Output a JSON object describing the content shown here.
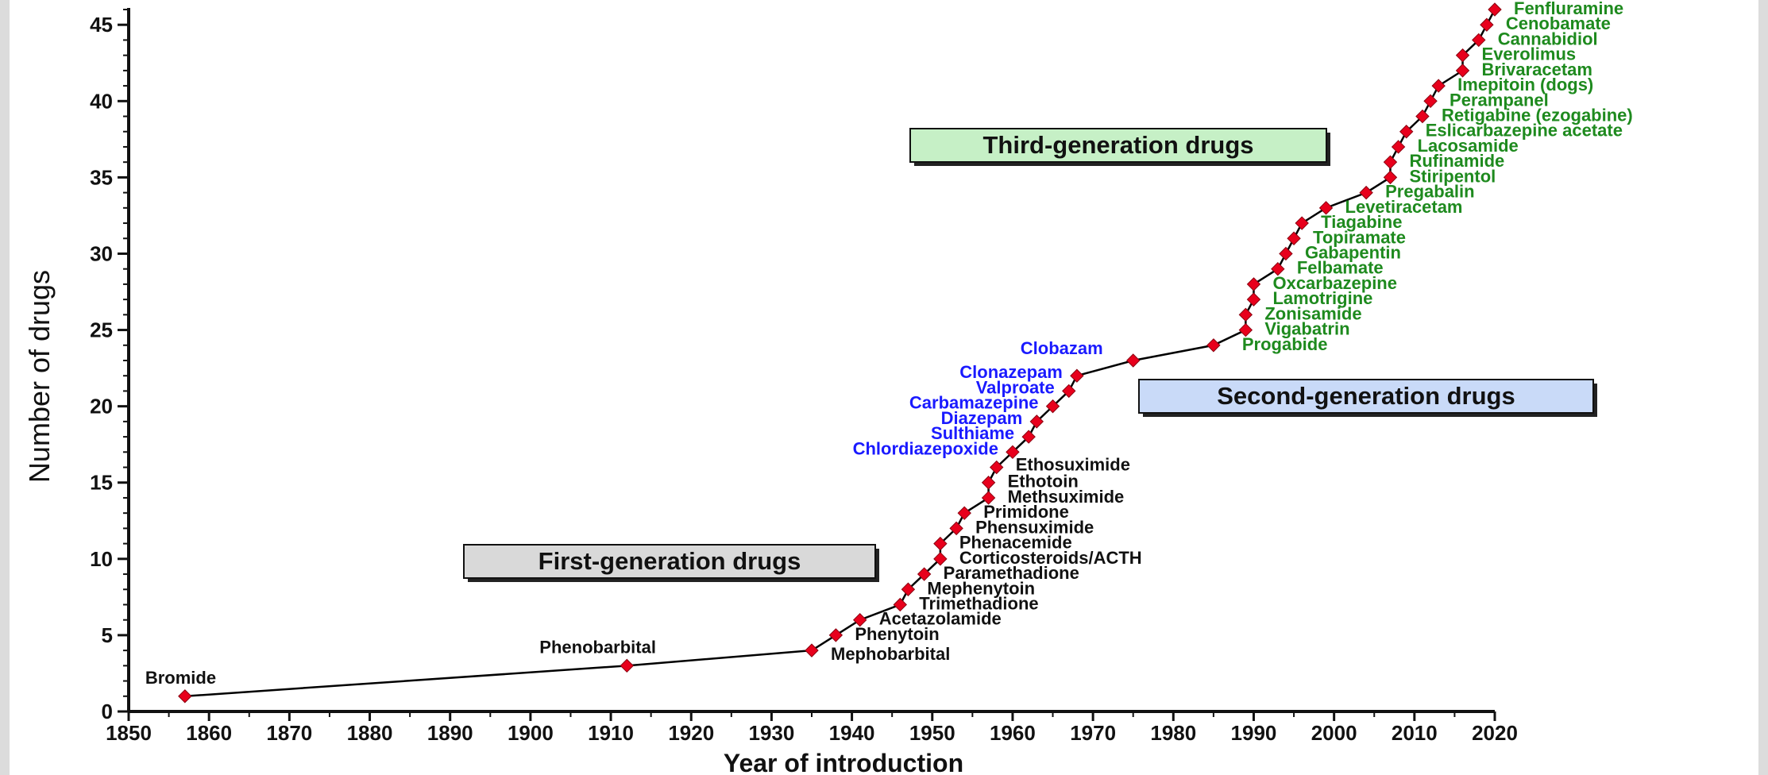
{
  "chart_data": {
    "type": "line",
    "title": "",
    "xlabel": "Year of introduction",
    "ylabel": "Number of drugs",
    "xlim": [
      1850,
      2020
    ],
    "ylim": [
      0,
      46
    ],
    "xticks": [
      1850,
      1860,
      1870,
      1880,
      1890,
      1900,
      1910,
      1920,
      1930,
      1940,
      1950,
      1960,
      1970,
      1980,
      1990,
      2000,
      2010,
      2020
    ],
    "yticks": [
      0,
      5,
      10,
      15,
      20,
      25,
      30,
      35,
      40,
      45
    ],
    "grid": false,
    "legend": "none",
    "colors": {
      "line": "#000000",
      "marker": "#e8001c",
      "first": "#111111",
      "second": "#1a1aff",
      "third": "#1e8a1e"
    },
    "generation_boxes": [
      {
        "label": "First-generation drugs",
        "fill": "#d9d9d9"
      },
      {
        "label": "Second-generation drugs",
        "fill": "#c9daf8"
      },
      {
        "label": "Third-generation drugs",
        "fill": "#c6f0c6"
      }
    ],
    "points": [
      {
        "x": 1857,
        "y": 1,
        "label": "Bromide",
        "gen": "first"
      },
      {
        "x": 1912,
        "y": 3,
        "label": "Phenobarbital",
        "gen": "first"
      },
      {
        "x": 1935,
        "y": 4,
        "label": "Mephobarbital",
        "gen": "first"
      },
      {
        "x": 1938,
        "y": 5,
        "label": "Phenytoin",
        "gen": "first"
      },
      {
        "x": 1941,
        "y": 6,
        "label": "Acetazolamide",
        "gen": "first"
      },
      {
        "x": 1946,
        "y": 7,
        "label": "Trimethadione",
        "gen": "first"
      },
      {
        "x": 1947,
        "y": 8,
        "label": "Mephenytoin",
        "gen": "first"
      },
      {
        "x": 1949,
        "y": 9,
        "label": "Paramethadione",
        "gen": "first"
      },
      {
        "x": 1951,
        "y": 10,
        "label": "Corticosteroids/ACTH",
        "gen": "first"
      },
      {
        "x": 1951,
        "y": 11,
        "label": "Phenacemide",
        "gen": "first"
      },
      {
        "x": 1953,
        "y": 12,
        "label": "Phensuximide",
        "gen": "first"
      },
      {
        "x": 1954,
        "y": 13,
        "label": "Primidone",
        "gen": "first"
      },
      {
        "x": 1957,
        "y": 14,
        "label": "Methsuximide",
        "gen": "first"
      },
      {
        "x": 1957,
        "y": 15,
        "label": "Ethotoin",
        "gen": "first"
      },
      {
        "x": 1958,
        "y": 16,
        "label": "Ethosuximide",
        "gen": "first"
      },
      {
        "x": 1960,
        "y": 17,
        "label": "Chlordiazepoxide",
        "gen": "second"
      },
      {
        "x": 1962,
        "y": 18,
        "label": "Sulthiame",
        "gen": "second"
      },
      {
        "x": 1963,
        "y": 19,
        "label": "Diazepam",
        "gen": "second"
      },
      {
        "x": 1965,
        "y": 20,
        "label": "Carbamazepine",
        "gen": "second"
      },
      {
        "x": 1967,
        "y": 21,
        "label": "Valproate",
        "gen": "second"
      },
      {
        "x": 1968,
        "y": 22,
        "label": "Clonazepam",
        "gen": "second"
      },
      {
        "x": 1975,
        "y": 23,
        "label": "Clobazam",
        "gen": "second"
      },
      {
        "x": 1985,
        "y": 24,
        "label": "Progabide",
        "gen": "third"
      },
      {
        "x": 1989,
        "y": 25,
        "label": "Vigabatrin",
        "gen": "third"
      },
      {
        "x": 1989,
        "y": 26,
        "label": "Zonisamide",
        "gen": "third"
      },
      {
        "x": 1990,
        "y": 27,
        "label": "Lamotrigine",
        "gen": "third"
      },
      {
        "x": 1990,
        "y": 28,
        "label": "Oxcarbazepine",
        "gen": "third"
      },
      {
        "x": 1993,
        "y": 29,
        "label": "Felbamate",
        "gen": "third"
      },
      {
        "x": 1994,
        "y": 30,
        "label": "Gabapentin",
        "gen": "third"
      },
      {
        "x": 1995,
        "y": 31,
        "label": "Topiramate",
        "gen": "third"
      },
      {
        "x": 1996,
        "y": 32,
        "label": "Tiagabine",
        "gen": "third"
      },
      {
        "x": 1999,
        "y": 33,
        "label": "Levetiracetam",
        "gen": "third"
      },
      {
        "x": 2004,
        "y": 34,
        "label": "Pregabalin",
        "gen": "third"
      },
      {
        "x": 2007,
        "y": 35,
        "label": "Stiripentol",
        "gen": "third"
      },
      {
        "x": 2007,
        "y": 36,
        "label": "Rufinamide",
        "gen": "third"
      },
      {
        "x": 2008,
        "y": 37,
        "label": "Lacosamide",
        "gen": "third"
      },
      {
        "x": 2009,
        "y": 38,
        "label": "Eslicarbazepine acetate",
        "gen": "third"
      },
      {
        "x": 2011,
        "y": 39,
        "label": "Retigabine (ezogabine)",
        "gen": "third"
      },
      {
        "x": 2012,
        "y": 40,
        "label": "Perampanel",
        "gen": "third"
      },
      {
        "x": 2013,
        "y": 41,
        "label": "Imepitoin (dogs)",
        "gen": "third"
      },
      {
        "x": 2016,
        "y": 42,
        "label": "Brivaracetam",
        "gen": "third"
      },
      {
        "x": 2016,
        "y": 43,
        "label": "Everolimus",
        "gen": "third"
      },
      {
        "x": 2018,
        "y": 44,
        "label": "Cannabidiol",
        "gen": "third"
      },
      {
        "x": 2019,
        "y": 45,
        "label": "Cenobamate",
        "gen": "third"
      },
      {
        "x": 2020,
        "y": 46,
        "label": "Fenfluramine",
        "gen": "third"
      }
    ]
  }
}
